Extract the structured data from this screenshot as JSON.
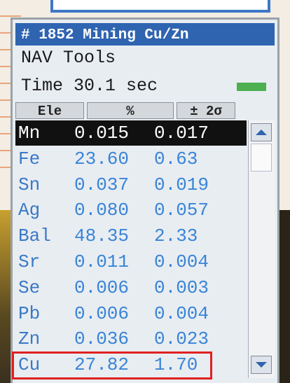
{
  "header": {
    "title": "# 1852 Mining Cu/Zn",
    "menu": "NAV Tools",
    "time": "Time 30.1 sec"
  },
  "table": {
    "columns": [
      "Ele",
      "%",
      "± 2σ"
    ],
    "rows": [
      [
        "Mn",
        "0.015",
        "0.017"
      ],
      [
        "Fe",
        "23.60",
        "0.63"
      ],
      [
        "Sn",
        "0.037",
        "0.019"
      ],
      [
        "Ag",
        "0.080",
        "0.057"
      ],
      [
        "Bal",
        "48.35",
        "2.33"
      ],
      [
        "Sr",
        "0.011",
        "0.004"
      ],
      [
        "Se",
        "0.006",
        "0.003"
      ],
      [
        "Pb",
        "0.006",
        "0.004"
      ],
      [
        "Zn",
        "0.036",
        "0.023"
      ],
      [
        "Cu",
        "27.82",
        "1.70"
      ]
    ]
  }
}
